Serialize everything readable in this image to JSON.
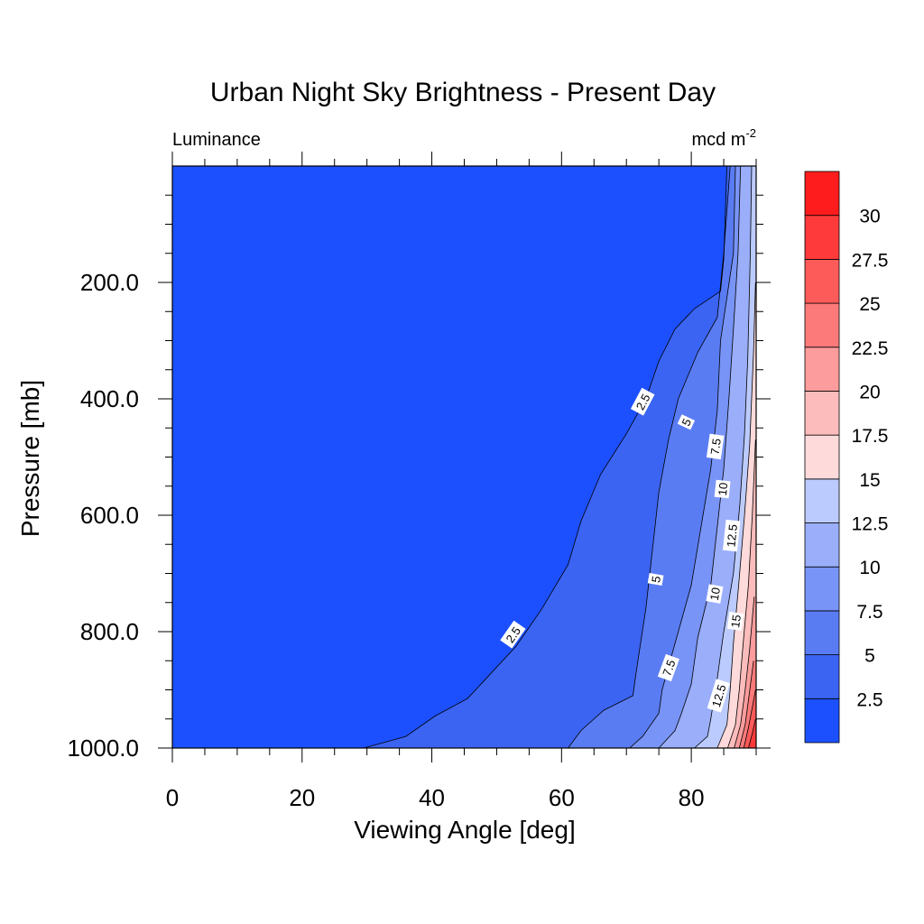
{
  "chart_data": {
    "type": "contour",
    "title": "Urban Night Sky Brightness - Present Day",
    "left_string": "Luminance",
    "right_string_base": "mcd m",
    "right_string_sup": "-2",
    "xlabel": "Viewing Angle [deg]",
    "ylabel": "Pressure [mb]",
    "xlim": [
      0,
      90
    ],
    "ylim": [
      1000,
      0
    ],
    "x_ticks": [
      0,
      20,
      40,
      60,
      80
    ],
    "x_tick_labels": [
      "0",
      "20",
      "40",
      "60",
      "80"
    ],
    "y_ticks": [
      200,
      400,
      600,
      800,
      1000
    ],
    "y_tick_labels": [
      "200.0",
      "400.0",
      "600.0",
      "800.0",
      "1000.0"
    ],
    "levels": [
      2.5,
      5,
      7.5,
      10,
      12.5,
      15,
      17.5,
      20,
      22.5,
      25,
      27.5,
      30
    ],
    "colorbar_labels": [
      "2.5",
      "5",
      "7.5",
      "10",
      "12.5",
      "15",
      "17.5",
      "20",
      "22.5",
      "25",
      "27.5",
      "30"
    ],
    "colors": [
      "#1c50ff",
      "#3b64f2",
      "#5a7cf3",
      "#7894f6",
      "#9aaefa",
      "#bccbfd",
      "#fedada",
      "#fdbcbc",
      "#fc9c9c",
      "#fc7a7a",
      "#fd5a5a",
      "#fe3a3a",
      "#fe1c1c"
    ],
    "contour_lines": [
      {
        "level": 2.5,
        "points": [
          [
            29.5,
            1000
          ],
          [
            36,
            980
          ],
          [
            40.5,
            945
          ],
          [
            45.5,
            915
          ],
          [
            48,
            885
          ],
          [
            53,
            825
          ],
          [
            57,
            760
          ],
          [
            61,
            685
          ],
          [
            63,
            610
          ],
          [
            66,
            530
          ],
          [
            70,
            460
          ],
          [
            73,
            400
          ],
          [
            75,
            335
          ],
          [
            77.5,
            280
          ],
          [
            80.5,
            245
          ],
          [
            84.5,
            215
          ],
          [
            85,
            160
          ],
          [
            85.5,
            0
          ]
        ]
      },
      {
        "level": 5,
        "points": [
          [
            61,
            1000
          ],
          [
            63,
            970
          ],
          [
            66.5,
            935
          ],
          [
            71,
            910
          ],
          [
            71.5,
            870
          ],
          [
            73,
            760
          ],
          [
            74,
            660
          ],
          [
            75,
            560
          ],
          [
            76.5,
            470
          ],
          [
            78,
            400
          ],
          [
            81,
            320
          ],
          [
            84,
            260
          ],
          [
            85,
            150
          ],
          [
            86,
            0
          ]
        ]
      },
      {
        "level": 7.5,
        "points": [
          [
            70.5,
            1000
          ],
          [
            72.5,
            980
          ],
          [
            75,
            940
          ],
          [
            75.5,
            900
          ],
          [
            76.5,
            860
          ],
          [
            78,
            800
          ],
          [
            80,
            720
          ],
          [
            81.5,
            620
          ],
          [
            83,
            520
          ],
          [
            84,
            420
          ],
          [
            84.5,
            300
          ],
          [
            86.5,
            150
          ],
          [
            86.8,
            0
          ]
        ]
      },
      {
        "level": 10,
        "points": [
          [
            75,
            1000
          ],
          [
            77.5,
            970
          ],
          [
            78.5,
            940
          ],
          [
            80,
            890
          ],
          [
            81,
            810
          ],
          [
            83,
            720
          ],
          [
            84,
            620
          ],
          [
            85,
            520
          ],
          [
            85.8,
            400
          ],
          [
            86.5,
            280
          ],
          [
            87.2,
            150
          ],
          [
            87.6,
            0
          ]
        ]
      },
      {
        "level": 12.5,
        "points": [
          [
            80.5,
            1000
          ],
          [
            82.5,
            980
          ],
          [
            83,
            950
          ],
          [
            84,
            880
          ],
          [
            85,
            800
          ],
          [
            86.5,
            700
          ],
          [
            87.5,
            580
          ],
          [
            88.2,
            460
          ],
          [
            88.7,
            330
          ],
          [
            89.1,
            150
          ],
          [
            89.3,
            0
          ]
        ]
      },
      {
        "level": 15,
        "points": [
          [
            84,
            1000
          ],
          [
            85.5,
            960
          ],
          [
            86,
            900
          ],
          [
            86.5,
            820
          ],
          [
            87.3,
            720
          ],
          [
            88.2,
            600
          ],
          [
            89,
            480
          ],
          [
            89.6,
            320
          ],
          [
            89.9,
            200
          ]
        ]
      },
      {
        "level": 17.5,
        "points": [
          [
            85.6,
            1000
          ],
          [
            86.8,
            960
          ],
          [
            87.4,
            900
          ],
          [
            88,
            820
          ],
          [
            88.8,
            720
          ],
          [
            89.4,
            600
          ],
          [
            89.9,
            470
          ]
        ]
      },
      {
        "level": 20,
        "points": [
          [
            86.6,
            1000
          ],
          [
            87.6,
            960
          ],
          [
            88.3,
            900
          ],
          [
            89,
            830
          ],
          [
            89.7,
            740
          ]
        ]
      },
      {
        "level": 22.5,
        "points": [
          [
            87.4,
            1000
          ],
          [
            88.3,
            960
          ],
          [
            88.9,
            910
          ],
          [
            89.6,
            850
          ]
        ]
      },
      {
        "level": 25,
        "points": [
          [
            88.1,
            1000
          ],
          [
            88.8,
            965
          ],
          [
            89.4,
            930
          ],
          [
            89.9,
            900
          ]
        ]
      },
      {
        "level": 27.5,
        "points": [
          [
            88.8,
            1000
          ],
          [
            89.4,
            975
          ],
          [
            89.9,
            950
          ]
        ]
      }
    ],
    "contour_labels": [
      {
        "text": "2.5",
        "x": 72.5,
        "y": 405,
        "rotation": -62
      },
      {
        "text": "2.5",
        "x": 52.5,
        "y": 805,
        "rotation": -55
      },
      {
        "text": "5",
        "x": 79.2,
        "y": 440,
        "rotation": -65
      },
      {
        "text": "5",
        "x": 74.5,
        "y": 710,
        "rotation": -80
      },
      {
        "text": "7.5",
        "x": 83.7,
        "y": 482,
        "rotation": -82
      },
      {
        "text": "7.5",
        "x": 76.5,
        "y": 862,
        "rotation": -70
      },
      {
        "text": "10",
        "x": 84.8,
        "y": 555,
        "rotation": -84
      },
      {
        "text": "10",
        "x": 83.6,
        "y": 735,
        "rotation": -80
      },
      {
        "text": "12.5",
        "x": 86.2,
        "y": 635,
        "rotation": -84
      },
      {
        "text": "12.5",
        "x": 84.2,
        "y": 910,
        "rotation": -73
      },
      {
        "text": "15",
        "x": 86.8,
        "y": 782,
        "rotation": -82
      }
    ]
  }
}
